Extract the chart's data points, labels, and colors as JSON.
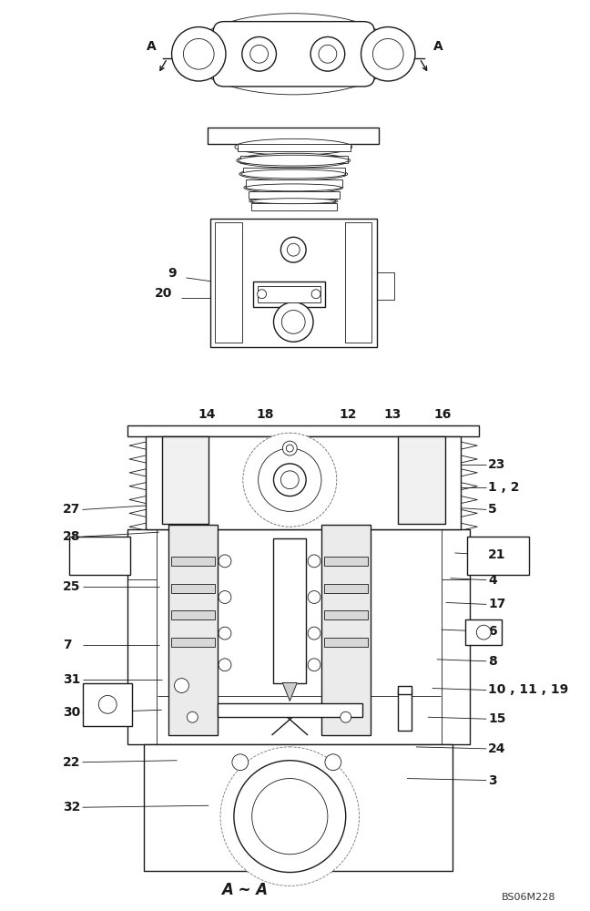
{
  "bottom_label": "A ~ A",
  "ref_code": "BS06M228",
  "background_color": "#ffffff",
  "line_color": "#1a1a1a",
  "figsize": [
    6.48,
    10.0
  ],
  "dpi": 100
}
